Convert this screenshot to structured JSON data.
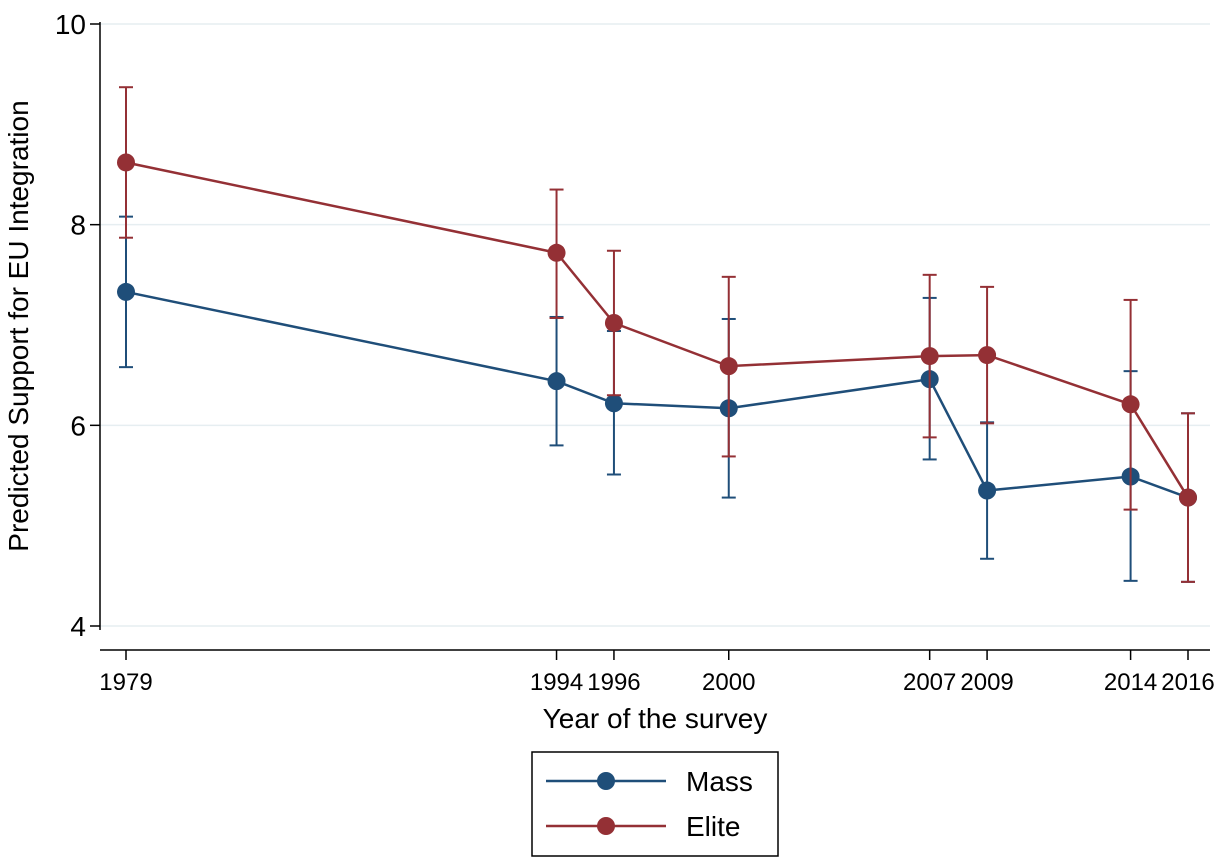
{
  "chart_data": {
    "type": "line",
    "title": "",
    "xlabel": "Year of the survey",
    "ylabel": "Predicted Support for EU Integration",
    "x": [
      1979,
      1994,
      1996,
      2000,
      2007,
      2009,
      2014,
      2016
    ],
    "x_tick_labels": [
      "1979",
      "1994",
      "1996",
      "2000",
      "2007",
      "2009",
      "2014",
      "2016"
    ],
    "xlim": [
      1979,
      2016
    ],
    "ylim": [
      4,
      10
    ],
    "y_ticks": [
      4,
      6,
      8,
      10
    ],
    "y_tick_labels": [
      "4",
      "6",
      "8",
      "10"
    ],
    "grid": true,
    "legend_position": "bottom-center",
    "series": [
      {
        "name": "Mass",
        "color": "#1f4e79",
        "values": [
          7.33,
          6.44,
          6.22,
          6.17,
          6.46,
          5.35,
          5.49,
          5.28
        ],
        "ci_low": [
          6.58,
          5.8,
          5.51,
          5.28,
          5.66,
          4.67,
          4.45,
          4.44
        ],
        "ci_high": [
          8.08,
          7.08,
          6.94,
          7.06,
          7.27,
          6.03,
          6.54,
          6.12
        ]
      },
      {
        "name": "Elite",
        "color": "#943035",
        "values": [
          8.62,
          7.72,
          7.02,
          6.59,
          6.69,
          6.7,
          6.21,
          5.28
        ],
        "ci_low": [
          7.87,
          7.07,
          6.3,
          5.69,
          5.88,
          6.02,
          5.16,
          4.44
        ],
        "ci_high": [
          9.37,
          8.35,
          7.74,
          7.48,
          7.5,
          7.38,
          7.25,
          6.12
        ]
      }
    ]
  }
}
